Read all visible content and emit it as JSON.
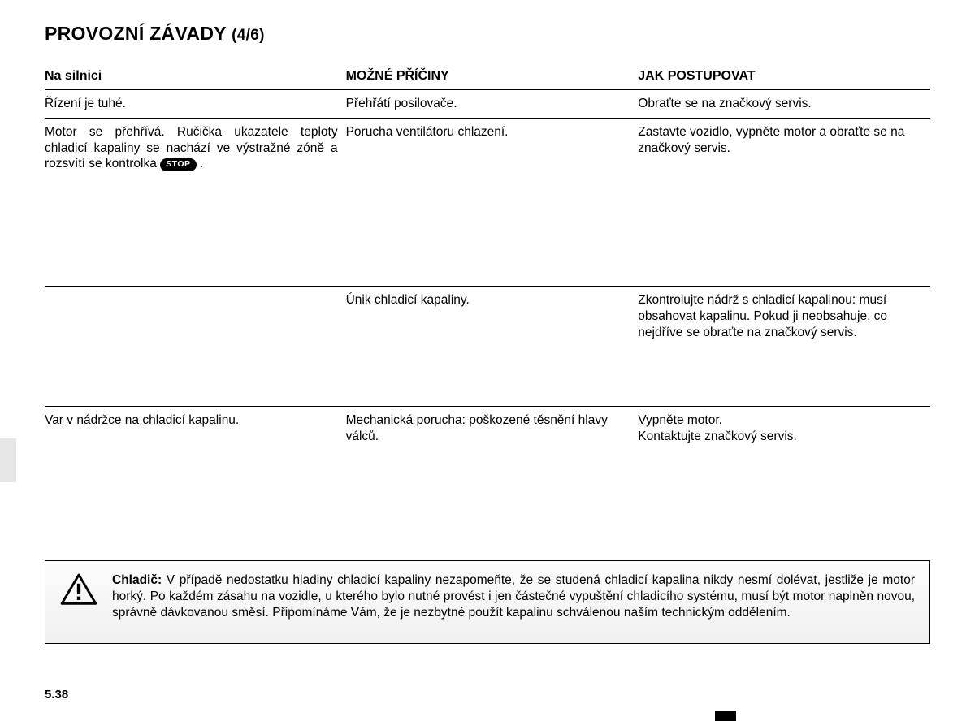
{
  "title_main": "PROVOZNÍ ZÁVADY",
  "title_part": "(4/6)",
  "columns": {
    "c1": "Na silnici",
    "c2": "MOŽNÉ PŘÍČINY",
    "c3": "JAK POSTUPOVAT"
  },
  "rows": [
    {
      "symptom_plain": "Řízení je tuhé.",
      "cause": "Přehřátí posilovače.",
      "action": "Obraťte se na značkový servis.",
      "row_class": ""
    },
    {
      "symptom_pre": "Motor se přehřívá. Ručička ukazatele teploty chladicí kapaliny se nachází ve výstražné zóně a rozsvítí se kontrolka ",
      "stop_label": "STOP",
      "symptom_post": " .",
      "cause": "Porucha ventilátoru chlazení.",
      "action": "Zastavte vozidlo, vypněte motor a obraťte se na značkový servis.",
      "row_class": "tall"
    },
    {
      "symptom_plain": "",
      "cause": "Únik chladicí kapaliny.",
      "action": "Zkontrolujte nádrž s chladicí kapalinou: musí obsahovat kapalinu. Pokud ji neobsahuje, co nejdříve se obraťte na značkový servis.",
      "row_class": "tall2"
    },
    {
      "symptom_plain": "Var v nádržce na chladicí kapalinu.",
      "cause": "Mechanická porucha: poškozené těsnění hlavy válců.",
      "action": "Vypněte motor.\nKontaktujte značkový servis.",
      "row_class": "last"
    }
  ],
  "note": {
    "bold": "Chladič:",
    "text": " V případě nedostatku hladiny chladicí kapaliny nezapomeňte, že se studená chladicí kapalina nikdy nesmí dolévat, jestliže je motor horký. Po každém zásahu na vozidle, u kterého bylo nutné provést i jen částečné vypuštění chladicího systému, musí být motor naplněn novou, správně dávkovanou směsí. Připomínáme Vám, že je nezbytné použít kapalinu schválenou naším technickým oddělením."
  },
  "page_number": "5.38"
}
